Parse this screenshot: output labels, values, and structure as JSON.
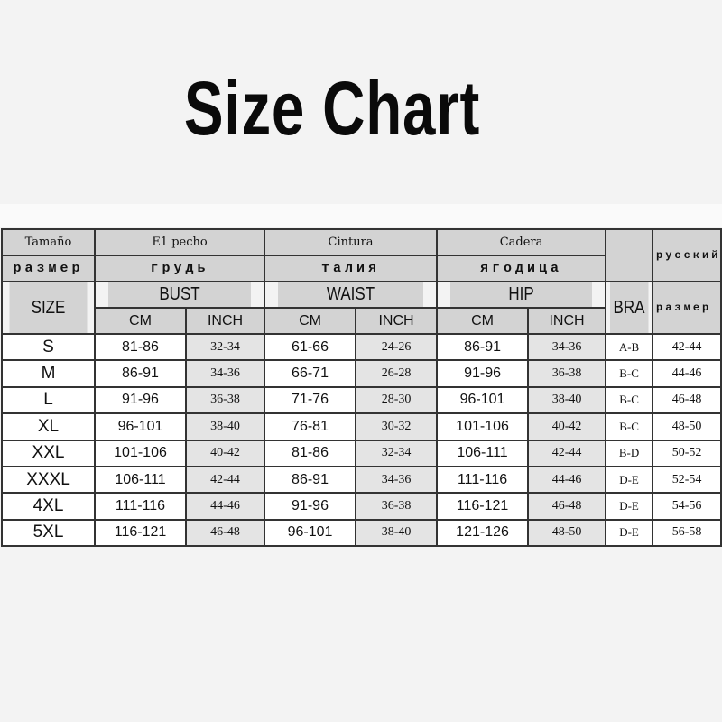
{
  "title": "Size Chart",
  "header": {
    "spanish": {
      "size": "Tamaño",
      "bust": "E1 pecho",
      "waist": "Cintura",
      "hip": "Cadera"
    },
    "russian": {
      "size": "размер",
      "bust": "грудь",
      "waist": "талия",
      "hip": "ягодица",
      "language": "русский",
      "size_col": "размер"
    },
    "english": {
      "size": "SIZE",
      "bust": "BUST",
      "waist": "WAIST",
      "hip": "HIP",
      "bra": "BRA"
    },
    "units": {
      "cm": "CM",
      "inch": "INCH"
    }
  },
  "rows": [
    {
      "size": "S",
      "bust_cm": "81-86",
      "bust_in": "32-34",
      "waist_cm": "61-66",
      "waist_in": "24-26",
      "hip_cm": "86-91",
      "hip_in": "34-36",
      "bra": "A-B",
      "ru": "42-44"
    },
    {
      "size": "M",
      "bust_cm": "86-91",
      "bust_in": "34-36",
      "waist_cm": "66-71",
      "waist_in": "26-28",
      "hip_cm": "91-96",
      "hip_in": "36-38",
      "bra": "B-C",
      "ru": "44-46"
    },
    {
      "size": "L",
      "bust_cm": "91-96",
      "bust_in": "36-38",
      "waist_cm": "71-76",
      "waist_in": "28-30",
      "hip_cm": "96-101",
      "hip_in": "38-40",
      "bra": "B-C",
      "ru": "46-48"
    },
    {
      "size": "XL",
      "bust_cm": "96-101",
      "bust_in": "38-40",
      "waist_cm": "76-81",
      "waist_in": "30-32",
      "hip_cm": "101-106",
      "hip_in": "40-42",
      "bra": "B-C",
      "ru": "48-50"
    },
    {
      "size": "XXL",
      "bust_cm": "101-106",
      "bust_in": "40-42",
      "waist_cm": "81-86",
      "waist_in": "32-34",
      "hip_cm": "106-111",
      "hip_in": "42-44",
      "bra": "B-D",
      "ru": "50-52"
    },
    {
      "size": "XXXL",
      "bust_cm": "106-111",
      "bust_in": "42-44",
      "waist_cm": "86-91",
      "waist_in": "34-36",
      "hip_cm": "111-116",
      "hip_in": "44-46",
      "bra": "D-E",
      "ru": "52-54"
    },
    {
      "size": "4XL",
      "bust_cm": "111-116",
      "bust_in": "44-46",
      "waist_cm": "91-96",
      "waist_in": "36-38",
      "hip_cm": "116-121",
      "hip_in": "46-48",
      "bra": "D-E",
      "ru": "54-56"
    },
    {
      "size": "5XL",
      "bust_cm": "116-121",
      "bust_in": "46-48",
      "waist_cm": "96-101",
      "waist_in": "38-40",
      "hip_cm": "121-126",
      "hip_in": "48-50",
      "bra": "D-E",
      "ru": "56-58"
    }
  ]
}
